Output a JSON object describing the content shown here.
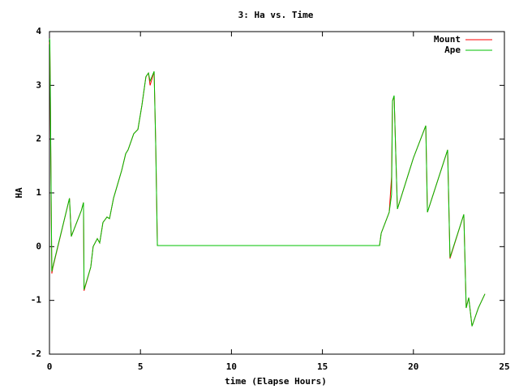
{
  "chart_data": {
    "type": "line",
    "title": "3: Ha vs. Time",
    "x_label": "time (Elapse Hours)",
    "y_label": "HA",
    "x": [
      0,
      0.02,
      0.05,
      0.1,
      0.13,
      0.18,
      1.1,
      1.2,
      1.75,
      1.87,
      1.9,
      2.27,
      2.4,
      2.63,
      2.76,
      2.94,
      3.16,
      3.3,
      3.52,
      3.65,
      3.97,
      4.19,
      4.32,
      4.63,
      4.86,
      5.08,
      5.3,
      5.44,
      5.53,
      5.75,
      5.84,
      5.93,
      18.14,
      18.23,
      18.67,
      18.8,
      18.85,
      18.94,
      19.03,
      19.12,
      20.0,
      20.68,
      20.77,
      21.88,
      22.01,
      22.77,
      22.9,
      23.04,
      23.22,
      23.57,
      23.93
    ],
    "series": [
      {
        "name": "Mount",
        "color": "#ff0000",
        "values": [
          3.8,
          3.75,
          2.6,
          0.6,
          -0.5,
          -0.4,
          0.9,
          0.19,
          0.67,
          0.82,
          -0.82,
          -0.38,
          0.0,
          0.15,
          0.07,
          0.45,
          0.55,
          0.52,
          0.9,
          1.05,
          1.42,
          1.73,
          1.8,
          2.1,
          2.18,
          2.63,
          3.16,
          3.23,
          3.0,
          3.26,
          1.88,
          0.02,
          0.02,
          0.25,
          0.64,
          1.3,
          2.71,
          2.8,
          1.73,
          0.7,
          1.65,
          2.25,
          0.64,
          1.8,
          -0.22,
          0.6,
          -1.14,
          -0.95,
          -1.48,
          -1.14,
          -0.88
        ]
      },
      {
        "name": "Ape",
        "color": "#00c000",
        "values": [
          3.87,
          3.84,
          2.78,
          0.67,
          -0.46,
          -0.38,
          0.9,
          0.19,
          0.67,
          0.82,
          -0.8,
          -0.38,
          0.0,
          0.15,
          0.07,
          0.45,
          0.55,
          0.52,
          0.9,
          1.05,
          1.42,
          1.73,
          1.8,
          2.1,
          2.18,
          2.63,
          3.16,
          3.23,
          3.08,
          3.26,
          1.88,
          0.02,
          0.02,
          0.25,
          0.64,
          0.97,
          2.71,
          2.81,
          1.73,
          0.7,
          1.65,
          2.25,
          0.64,
          1.8,
          -0.2,
          0.6,
          -1.14,
          -0.95,
          -1.48,
          -1.14,
          -0.88
        ]
      }
    ],
    "xlim": [
      0,
      25
    ],
    "xticks": [
      0,
      5,
      10,
      15,
      20,
      25
    ],
    "ylim": [
      -2,
      4
    ],
    "yticks": [
      -2,
      -1,
      0,
      1,
      2,
      3,
      4
    ],
    "legend": "top-right",
    "grid": false
  }
}
